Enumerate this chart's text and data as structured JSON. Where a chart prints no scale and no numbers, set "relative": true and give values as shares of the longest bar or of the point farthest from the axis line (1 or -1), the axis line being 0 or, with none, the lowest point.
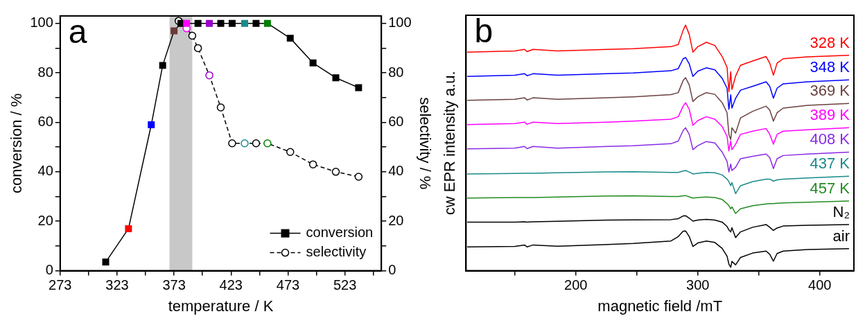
{
  "chart_data": [
    {
      "type": "line",
      "xlabel": "temperature / K",
      "ylabel": "conversion / %",
      "y2label": "selectivity / %",
      "annotations": [
        "a"
      ],
      "xlim": [
        273,
        555
      ],
      "xticks": [
        273,
        {
          "value": 298,
          "label": null
        },
        323,
        {
          "value": 348,
          "label": null
        },
        373,
        {
          "value": 398,
          "label": null
        },
        423,
        {
          "value": 448,
          "label": null
        },
        473,
        {
          "value": 498,
          "label": null
        },
        523,
        {
          "value": 548,
          "label": null
        }
      ],
      "ylim": [
        0,
        103
      ],
      "yticks": [
        0,
        {
          "value": 10,
          "label": null
        },
        20,
        {
          "value": 30,
          "label": null
        },
        40,
        {
          "value": 50,
          "label": null
        },
        60,
        {
          "value": 70,
          "label": null
        },
        80,
        {
          "value": 90,
          "label": null
        },
        100
      ],
      "y2lim": [
        0,
        103
      ],
      "y2ticks": [
        0,
        {
          "value": 10,
          "label": null
        },
        20,
        {
          "value": 30,
          "label": null
        },
        40,
        {
          "value": 50,
          "label": null
        },
        60,
        {
          "value": 70,
          "label": null
        },
        80,
        {
          "value": 90,
          "label": null
        },
        100
      ],
      "grid": false,
      "legend": "bottom right",
      "bands": [
        {
          "axis": "x",
          "from": 369,
          "to": 389,
          "color": "#c8c8c8"
        }
      ],
      "series": [
        {
          "name": "conversion",
          "color": "#000000",
          "marker": "square",
          "line_style": "solid",
          "x": [
            313,
            333,
            353,
            363,
            373,
            379,
            384,
            394,
            404,
            414,
            424,
            435,
            445,
            455,
            475,
            495,
            515,
            535
          ],
          "values": [
            3.5,
            17,
            59,
            83,
            97,
            100,
            100,
            100,
            100,
            100,
            100,
            100,
            100,
            100,
            94,
            84,
            78,
            74
          ],
          "colors": [
            "#000000",
            "#ff0000",
            "#0000ff",
            "#000000",
            "#6b3a3a",
            "#000000",
            "#ff00ff",
            "#000000",
            "#9900cc",
            "#000000",
            "#000000",
            "#1a8a8a",
            "#000000",
            "#008000",
            "#000000",
            "#000000",
            "#000000",
            "#000000"
          ]
        },
        {
          "name": "selectivity",
          "color": "#000000",
          "marker": "circle",
          "line_style": "dashed",
          "axis": "y2",
          "x": [
            377,
            384,
            389,
            394,
            404,
            414,
            424,
            435,
            445,
            455,
            475,
            495,
            515,
            535
          ],
          "values": [
            101,
            98,
            95,
            90,
            79,
            66,
            51.5,
            51.5,
            51.5,
            51.5,
            48,
            43,
            40,
            38
          ],
          "colors": [
            "#000000",
            "#ff00ff",
            "#000000",
            "#000000",
            "#9900cc",
            "#000000",
            "#000000",
            "#1a8a8a",
            "#000000",
            "#008000",
            "#000000",
            "#000000",
            "#000000",
            "#000000"
          ]
        }
      ]
    },
    {
      "type": "line",
      "relative": true,
      "xlabel": "magnetic field /mT",
      "ylabel": "cw EPR intensity a.u.",
      "annotations": [
        "b"
      ],
      "tick_labels": "x",
      "grid": false,
      "legend": false,
      "marker": "none",
      "line_style": "solid",
      "xlim": [
        110,
        428
      ],
      "xticks": [
        {
          "value": 150,
          "label": null
        },
        200,
        {
          "value": 250,
          "label": null
        },
        300,
        {
          "value": 350,
          "label": null
        },
        400
      ],
      "x": [
        111,
        150,
        158,
        160,
        165,
        185,
        226,
        247,
        278,
        284,
        288,
        290,
        293,
        296,
        300,
        307,
        314,
        320,
        324,
        325.5,
        327,
        328,
        331,
        335,
        345,
        356,
        359,
        362,
        365,
        370,
        390,
        424
      ],
      "series": [
        {
          "name": "328 K",
          "color": "#ff0000",
          "values": [
            0.89,
            0.895,
            0.901,
            0.892,
            0.901,
            0.895,
            0.901,
            0.904,
            0.912,
            0.921,
            0.979,
            1,
            0.962,
            0.89,
            0.912,
            0.93,
            0.917,
            0.872,
            0.828,
            0.729,
            0.81,
            0.738,
            0.792,
            0.836,
            0.854,
            0.872,
            0.845,
            0.796,
            0.845,
            0.863,
            0.871,
            0.877
          ]
        },
        {
          "name": "348 K",
          "color": "#0000ff",
          "values": [
            0.791,
            0.796,
            0.802,
            0.794,
            0.802,
            0.796,
            0.802,
            0.805,
            0.814,
            0.823,
            0.863,
            0.868,
            0.842,
            0.791,
            0.812,
            0.826,
            0.818,
            0.783,
            0.743,
            0.657,
            0.716,
            0.662,
            0.702,
            0.735,
            0.751,
            0.769,
            0.751,
            0.702,
            0.743,
            0.761,
            0.769,
            0.777
          ]
        },
        {
          "name": "369 K",
          "color": "#6b4040",
          "values": [
            0.694,
            0.698,
            0.704,
            0.695,
            0.704,
            0.698,
            0.704,
            0.708,
            0.717,
            0.725,
            0.775,
            0.786,
            0.756,
            0.689,
            0.708,
            0.725,
            0.718,
            0.684,
            0.643,
            0.555,
            0.534,
            0.582,
            0.56,
            0.622,
            0.649,
            0.67,
            0.654,
            0.609,
            0.643,
            0.662,
            0.673,
            0.681
          ]
        },
        {
          "name": "389 K",
          "color": "#ff00ff",
          "values": [
            0.595,
            0.599,
            0.605,
            0.596,
            0.605,
            0.599,
            0.605,
            0.609,
            0.617,
            0.627,
            0.67,
            0.684,
            0.657,
            0.592,
            0.611,
            0.627,
            0.617,
            0.587,
            0.547,
            0.488,
            0.528,
            0.493,
            0.515,
            0.555,
            0.568,
            0.579,
            0.555,
            0.515,
            0.555,
            0.568,
            0.574,
            0.582
          ]
        },
        {
          "name": "408 K",
          "color": "#8a2be2",
          "values": [
            0.496,
            0.499,
            0.506,
            0.497,
            0.506,
            0.499,
            0.506,
            0.509,
            0.517,
            0.528,
            0.571,
            0.582,
            0.555,
            0.493,
            0.509,
            0.526,
            0.52,
            0.483,
            0.445,
            0.402,
            0.434,
            0.408,
            0.421,
            0.456,
            0.466,
            0.475,
            0.461,
            0.416,
            0.456,
            0.469,
            0.475,
            0.483
          ]
        },
        {
          "name": "437 K",
          "color": "#1a8a8a",
          "values": [
            0.394,
            0.396,
            0.397,
            0.397,
            0.397,
            0.399,
            0.402,
            0.403,
            0.4,
            0.4,
            0.406,
            0.408,
            0.402,
            0.394,
            0.397,
            0.4,
            0.399,
            0.39,
            0.373,
            0.363,
            0.346,
            0.359,
            0.314,
            0.346,
            0.363,
            0.373,
            0.373,
            0.365,
            0.37,
            0.373,
            0.378,
            0.385
          ]
        },
        {
          "name": "457 K",
          "color": "#228b22",
          "values": [
            0.296,
            0.298,
            0.298,
            0.298,
            0.298,
            0.3,
            0.304,
            0.305,
            0.302,
            0.302,
            0.305,
            0.306,
            0.301,
            0.296,
            0.298,
            0.3,
            0.298,
            0.29,
            0.273,
            0.265,
            0.252,
            0.26,
            0.233,
            0.252,
            0.265,
            0.272,
            0.273,
            0.273,
            0.275,
            0.276,
            0.279,
            0.284
          ]
        },
        {
          "name": "N₂",
          "color": "#000000",
          "values": [
            0.198,
            0.198,
            0.199,
            0.198,
            0.199,
            0.201,
            0.206,
            0.207,
            0.208,
            0.212,
            0.223,
            0.224,
            0.214,
            0.202,
            0.206,
            0.209,
            0.206,
            0.198,
            0.18,
            0.166,
            0.158,
            0.175,
            0.135,
            0.158,
            0.177,
            0.188,
            0.177,
            0.164,
            0.174,
            0.182,
            0.185,
            0.188
          ]
        },
        {
          "name": "air",
          "color": "#000000",
          "values": [
            0.097,
            0.099,
            0.105,
            0.097,
            0.105,
            0.1,
            0.107,
            0.111,
            0.121,
            0.139,
            0.161,
            0.162,
            0.139,
            0.099,
            0.113,
            0.121,
            0.115,
            0.091,
            0.059,
            0.027,
            0.014,
            0.038,
            0.024,
            0.054,
            0.072,
            0.08,
            0.067,
            0.039,
            0.07,
            0.08,
            0.086,
            0.09
          ]
        }
      ]
    }
  ]
}
